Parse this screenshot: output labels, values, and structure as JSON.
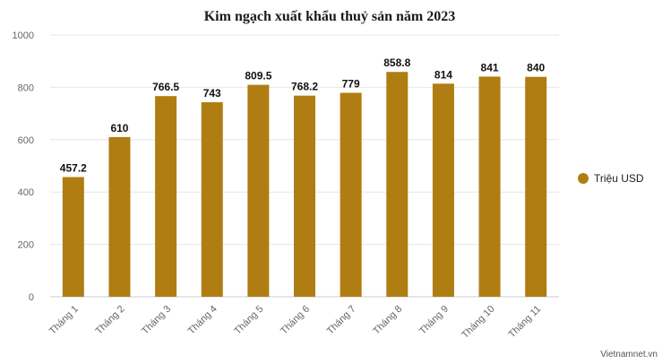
{
  "chart_data": {
    "type": "bar",
    "title": "Kim ngạch xuất khẩu thuỷ sản năm 2023",
    "xlabel": "",
    "ylabel": "",
    "categories": [
      "Tháng 1",
      "Tháng 2",
      "Tháng 3",
      "Tháng 4",
      "Tháng 5",
      "Tháng 6",
      "Tháng 7",
      "Tháng 8",
      "Tháng 9",
      "Tháng 10",
      "Tháng 11"
    ],
    "series": [
      {
        "name": "Triệu USD",
        "values": [
          457.2,
          610,
          766.5,
          743,
          809.5,
          768.2,
          779,
          858.8,
          814,
          841,
          840
        ],
        "labels": [
          "457.2",
          "610",
          "766.5",
          "743",
          "809.5",
          "768.2",
          "779",
          "858.8",
          "814",
          "841",
          "840"
        ],
        "color": "#b07d12"
      }
    ],
    "ylim": [
      0,
      1000
    ],
    "yticks": [
      0,
      200,
      400,
      600,
      800,
      1000
    ],
    "grid": true,
    "legend_position": "right"
  },
  "credit": "Vietnamnet.vn"
}
